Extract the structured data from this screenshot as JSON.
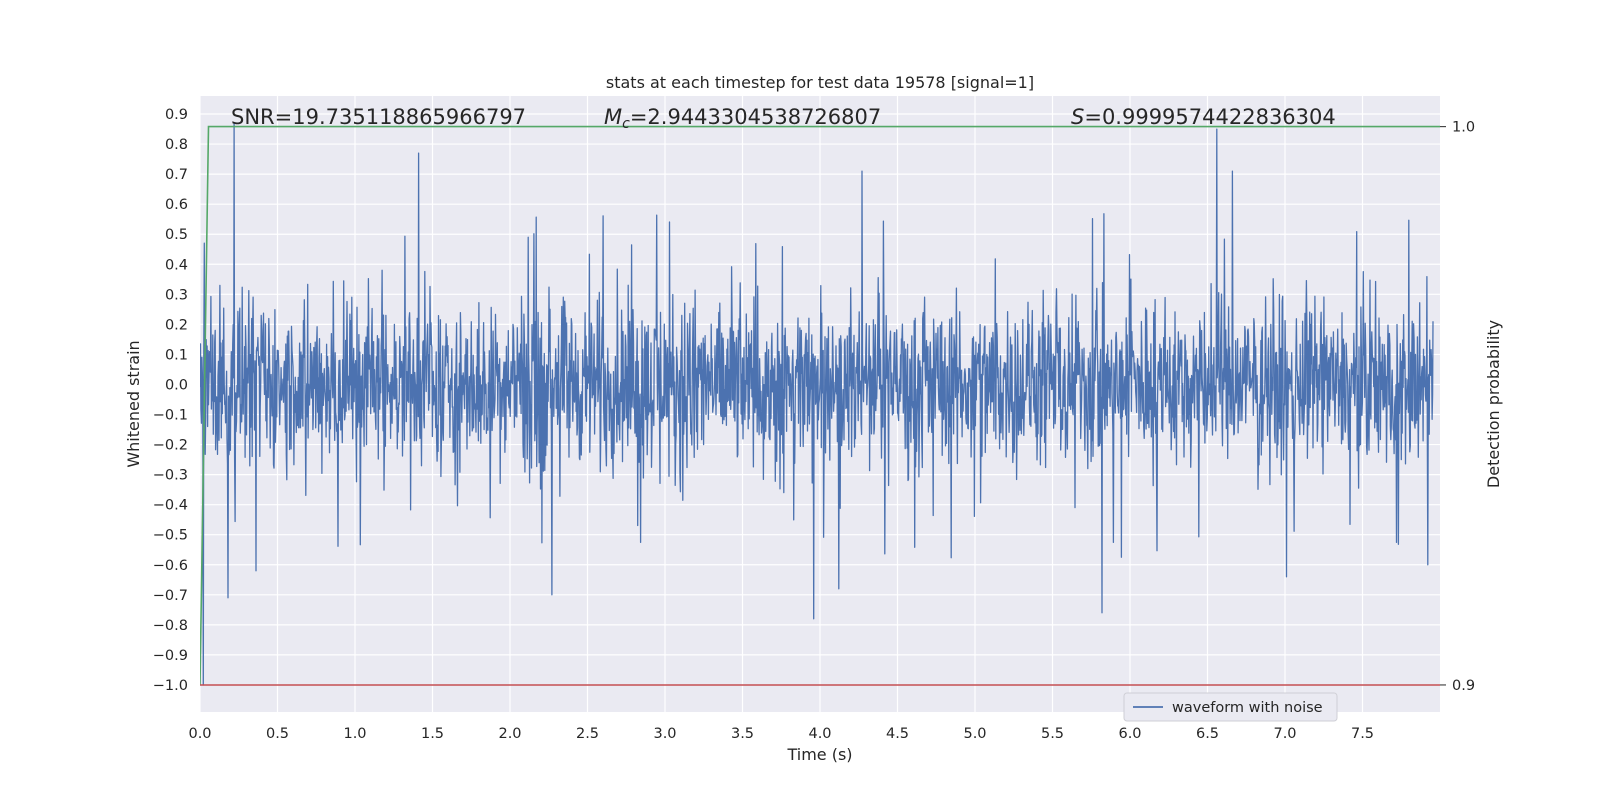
{
  "chart_data": {
    "type": "line",
    "title": "stats at each timestep for test data 19578 [signal=1]",
    "xlabel": "Time (s)",
    "ylabel": "Whitened strain",
    "y2label": "Detection probability",
    "xlim": [
      0.0,
      8.0
    ],
    "ylim": [
      -1.09,
      0.96
    ],
    "y2lim": [
      0.9,
      1.0
    ],
    "x_ticks": [
      "0.0",
      "0.5",
      "1.0",
      "1.5",
      "2.0",
      "2.5",
      "3.0",
      "3.5",
      "4.0",
      "4.5",
      "5.0",
      "5.5",
      "6.0",
      "6.5",
      "7.0",
      "7.5"
    ],
    "y_ticks": [
      "0.9",
      "0.8",
      "0.7",
      "0.6",
      "0.5",
      "0.4",
      "0.3",
      "0.2",
      "0.1",
      "0.0",
      "−0.1",
      "−0.2",
      "−0.3",
      "−0.4",
      "−0.5",
      "−0.6",
      "−0.7",
      "−0.8",
      "−0.9",
      "−1.0"
    ],
    "y2_ticks": [
      "1.0",
      "0.9"
    ],
    "grid": true,
    "legend_position": "lower-right",
    "annotations": {
      "snr": "SNR=19.735118865966797",
      "mc_symbol": "M",
      "mc_sub": "c",
      "mc_value": "=2.9443304538726807",
      "s_symbol": "S",
      "s_value": "=0.9999574422836304"
    },
    "series": [
      {
        "name": "waveform with noise",
        "color": "#4c72b0",
        "axis": "left",
        "description": "whitened strain, dense noisy waveform over 0–8 s",
        "noise_band": [
          -0.4,
          0.4
        ],
        "peaks": [
          {
            "x": 0.02,
            "y": -1.0
          },
          {
            "x": 0.22,
            "y": 0.87
          },
          {
            "x": 0.18,
            "y": -0.71
          },
          {
            "x": 0.36,
            "y": -0.62
          },
          {
            "x": 1.41,
            "y": 0.77
          },
          {
            "x": 2.27,
            "y": -0.7
          },
          {
            "x": 3.96,
            "y": -0.78
          },
          {
            "x": 4.12,
            "y": -0.68
          },
          {
            "x": 4.27,
            "y": 0.71
          },
          {
            "x": 5.82,
            "y": -0.76
          },
          {
            "x": 6.56,
            "y": 0.85
          },
          {
            "x": 6.66,
            "y": 0.71
          },
          {
            "x": 7.01,
            "y": -0.64
          },
          {
            "x": 7.92,
            "y": -0.6
          }
        ]
      },
      {
        "name": "",
        "color": "#55a868",
        "axis": "right",
        "description": "detection probability",
        "points": [
          [
            0.0,
            0.9
          ],
          [
            0.055,
            1.0
          ],
          [
            0.1,
            1.0
          ],
          [
            8.0,
            1.0
          ]
        ]
      },
      {
        "name": "",
        "color": "#c44e52",
        "axis": "right",
        "description": "threshold line",
        "points": [
          [
            0.0,
            0.9
          ],
          [
            8.0,
            0.9
          ]
        ]
      }
    ]
  }
}
